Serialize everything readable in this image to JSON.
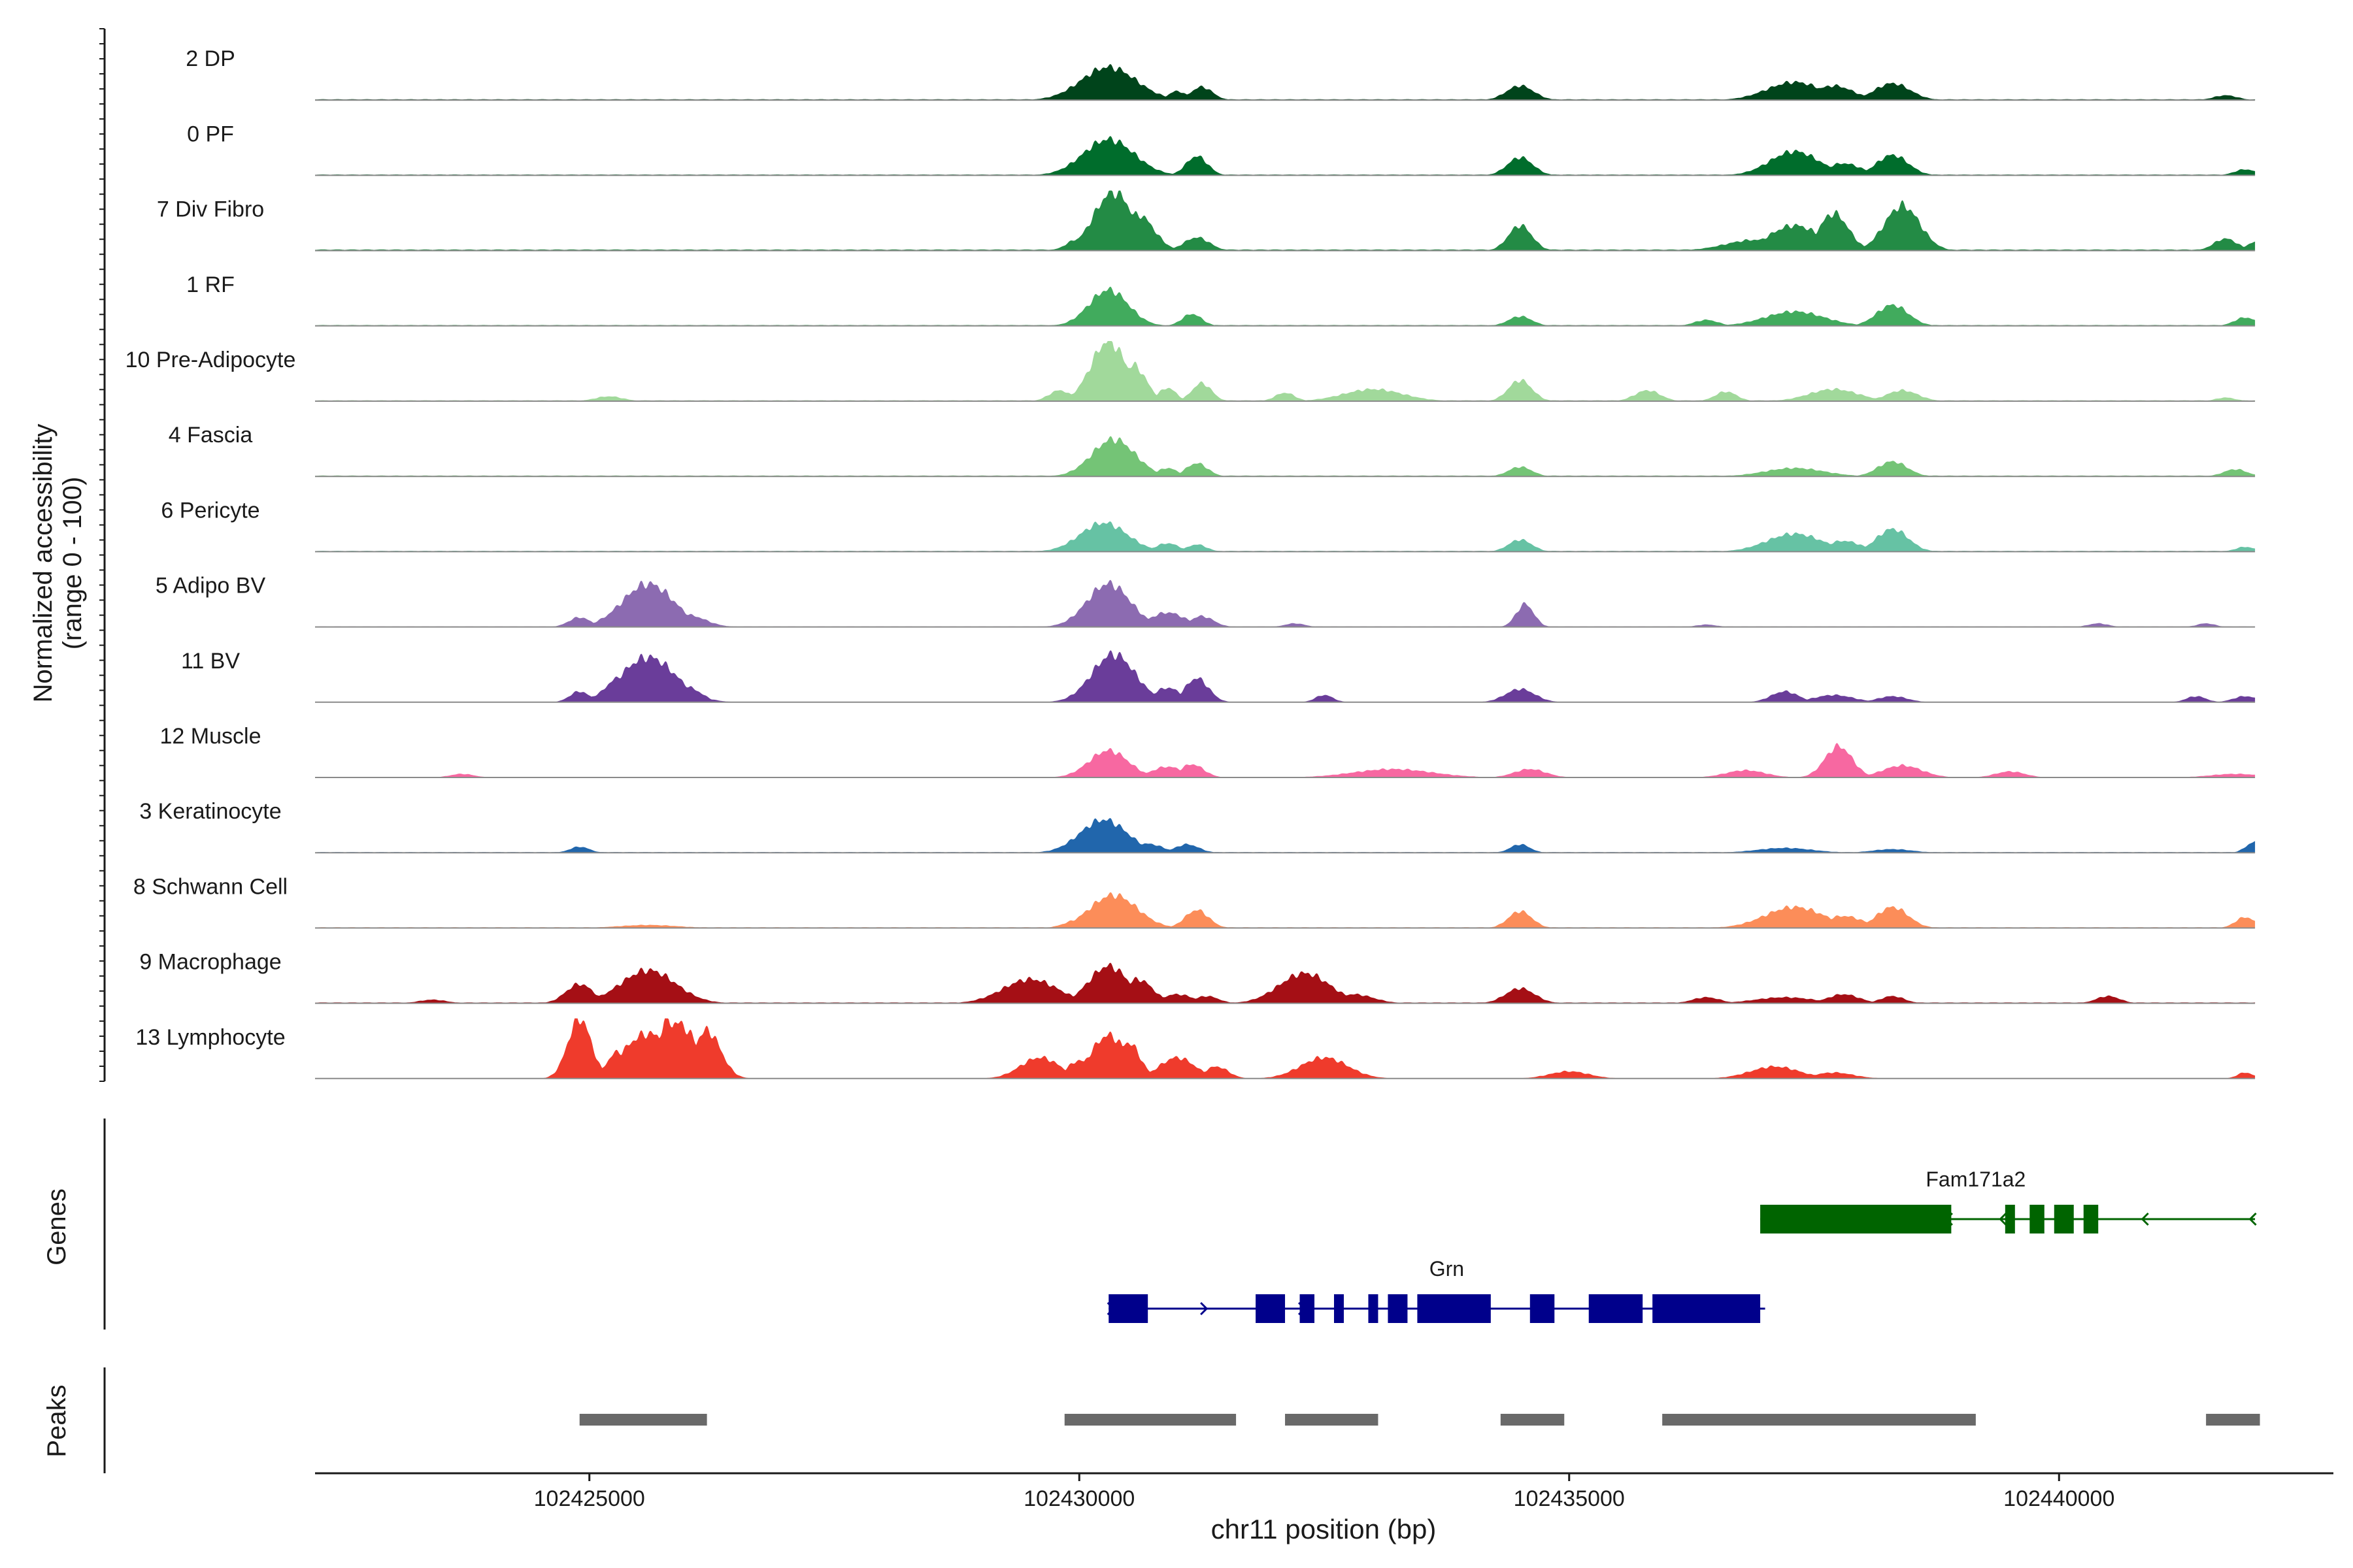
{
  "chart_data": {
    "type": "area",
    "title": "",
    "xlabel": "chr11 position (bp)",
    "ylabel_line1": "Normalized accessibility",
    "ylabel_line2": "(range 0 - 100)",
    "xlim": [
      102422200,
      102442800
    ],
    "ylim": [
      0,
      100
    ],
    "x_ticks": [
      102425000,
      102430000,
      102435000,
      102440000
    ],
    "x_tick_labels": [
      "102425000",
      "102430000",
      "102435000",
      "102440000"
    ],
    "track_range": [
      102422200,
      102442000
    ],
    "panel_labels": {
      "genes": "Genes",
      "peaks": "Peaks"
    },
    "series": [
      {
        "name": "2 DP",
        "color": "#00441b",
        "base": 1.5,
        "peaks": [
          [
            102430300,
            280,
            55
          ],
          [
            102431000,
            90,
            15
          ],
          [
            102431250,
            110,
            22
          ],
          [
            102434500,
            140,
            24
          ],
          [
            102437300,
            280,
            30
          ],
          [
            102437700,
            200,
            24
          ],
          [
            102438300,
            180,
            28
          ],
          [
            102441700,
            120,
            8
          ]
        ]
      },
      {
        "name": "0 PF",
        "color": "#006d2c",
        "base": 1.5,
        "peaks": [
          [
            102430300,
            260,
            60
          ],
          [
            102431200,
            110,
            32
          ],
          [
            102434500,
            130,
            30
          ],
          [
            102437300,
            250,
            40
          ],
          [
            102437800,
            180,
            20
          ],
          [
            102438300,
            160,
            34
          ],
          [
            102441900,
            110,
            10
          ]
        ]
      },
      {
        "name": "7 Div Fibro",
        "color": "#238b45",
        "base": 2,
        "peaks": [
          [
            102430350,
            200,
            98
          ],
          [
            102430600,
            160,
            60
          ],
          [
            102430000,
            120,
            20
          ],
          [
            102431200,
            130,
            22
          ],
          [
            102434500,
            120,
            42
          ],
          [
            102436900,
            300,
            18
          ],
          [
            102437300,
            260,
            42
          ],
          [
            102437700,
            150,
            62
          ],
          [
            102438400,
            180,
            75
          ],
          [
            102441700,
            120,
            20
          ],
          [
            102442000,
            90,
            14
          ]
        ]
      },
      {
        "name": "1 RF",
        "color": "#41ab5d",
        "base": 1.5,
        "peaks": [
          [
            102430300,
            200,
            60
          ],
          [
            102431150,
            100,
            20
          ],
          [
            102434500,
            120,
            16
          ],
          [
            102436400,
            120,
            10
          ],
          [
            102437300,
            300,
            24
          ],
          [
            102438300,
            160,
            35
          ],
          [
            102441900,
            110,
            14
          ]
        ]
      },
      {
        "name": "10 Pre-Adipocyte",
        "color": "#a1d99b",
        "base": 1.5,
        "peaks": [
          [
            102430300,
            180,
            100
          ],
          [
            102430550,
            130,
            60
          ],
          [
            102429800,
            110,
            18
          ],
          [
            102430900,
            90,
            22
          ],
          [
            102431250,
            100,
            30
          ],
          [
            102432100,
            100,
            14
          ],
          [
            102433000,
            300,
            20
          ],
          [
            102434500,
            120,
            35
          ],
          [
            102435800,
            130,
            18
          ],
          [
            102436600,
            110,
            16
          ],
          [
            102437700,
            250,
            20
          ],
          [
            102438400,
            160,
            18
          ],
          [
            102425200,
            140,
            8
          ],
          [
            102441700,
            100,
            6
          ]
        ]
      },
      {
        "name": "4 Fascia",
        "color": "#74c476",
        "base": 1.5,
        "peaks": [
          [
            102430350,
            220,
            62
          ],
          [
            102430900,
            100,
            14
          ],
          [
            102431200,
            110,
            22
          ],
          [
            102434500,
            120,
            16
          ],
          [
            102437300,
            300,
            14
          ],
          [
            102438300,
            150,
            25
          ],
          [
            102441800,
            120,
            12
          ]
        ]
      },
      {
        "name": "6 Pericyte",
        "color": "#66c2a4",
        "base": 1.5,
        "peaks": [
          [
            102430250,
            240,
            48
          ],
          [
            102430900,
            120,
            14
          ],
          [
            102431200,
            100,
            12
          ],
          [
            102434500,
            120,
            20
          ],
          [
            102437300,
            280,
            30
          ],
          [
            102437800,
            180,
            18
          ],
          [
            102438300,
            160,
            38
          ],
          [
            102441900,
            100,
            8
          ]
        ]
      },
      {
        "name": "5 Adipo BV",
        "color": "#8c6bb1",
        "base": 0.8,
        "peaks": [
          [
            102425600,
            260,
            72
          ],
          [
            102426000,
            180,
            20
          ],
          [
            102424900,
            110,
            16
          ],
          [
            102430300,
            220,
            72
          ],
          [
            102430900,
            180,
            24
          ],
          [
            102431250,
            120,
            18
          ],
          [
            102432200,
            100,
            6
          ],
          [
            102434550,
            90,
            38
          ],
          [
            102436400,
            100,
            4
          ],
          [
            102440400,
            100,
            6
          ],
          [
            102441500,
            90,
            6
          ]
        ]
      },
      {
        "name": "11 BV",
        "color": "#6a3d9a",
        "base": 0.8,
        "peaks": [
          [
            102425600,
            280,
            75
          ],
          [
            102425300,
            140,
            40
          ],
          [
            102426000,
            140,
            25
          ],
          [
            102424900,
            100,
            18
          ],
          [
            102430350,
            220,
            80
          ],
          [
            102430900,
            140,
            24
          ],
          [
            102431200,
            120,
            40
          ],
          [
            102432500,
            90,
            12
          ],
          [
            102434500,
            150,
            22
          ],
          [
            102437200,
            140,
            18
          ],
          [
            102437700,
            200,
            12
          ],
          [
            102438300,
            150,
            10
          ],
          [
            102441400,
            100,
            10
          ],
          [
            102441900,
            120,
            10
          ]
        ]
      },
      {
        "name": "12 Muscle",
        "color": "#f768a1",
        "base": 0.8,
        "peaks": [
          [
            102430300,
            200,
            45
          ],
          [
            102430900,
            160,
            18
          ],
          [
            102431150,
            120,
            22
          ],
          [
            102433200,
            400,
            14
          ],
          [
            102434600,
            160,
            14
          ],
          [
            102436800,
            200,
            12
          ],
          [
            102437750,
            140,
            52
          ],
          [
            102438400,
            200,
            20
          ],
          [
            102439500,
            150,
            10
          ],
          [
            102423700,
            120,
            6
          ],
          [
            102441800,
            250,
            6
          ]
        ]
      },
      {
        "name": "3 Keratinocyte",
        "color": "#2166ac",
        "base": 1.2,
        "peaks": [
          [
            102430250,
            240,
            55
          ],
          [
            102430700,
            150,
            15
          ],
          [
            102431100,
            120,
            14
          ],
          [
            102434500,
            100,
            14
          ],
          [
            102437200,
            280,
            8
          ],
          [
            102438300,
            200,
            6
          ],
          [
            102424900,
            100,
            10
          ],
          [
            102442000,
            90,
            18
          ]
        ]
      },
      {
        "name": "8 Schwann Cell",
        "color": "#fc8d59",
        "base": 1.2,
        "peaks": [
          [
            102430350,
            240,
            55
          ],
          [
            102430000,
            140,
            14
          ],
          [
            102431200,
            120,
            30
          ],
          [
            102434500,
            120,
            28
          ],
          [
            102437300,
            300,
            35
          ],
          [
            102437800,
            200,
            20
          ],
          [
            102438300,
            160,
            35
          ],
          [
            102441900,
            100,
            18
          ],
          [
            102425600,
            300,
            5
          ]
        ]
      },
      {
        "name": "9 Macrophage",
        "color": "#a50f15",
        "base": 1.5,
        "peaks": [
          [
            102425600,
            280,
            55
          ],
          [
            102424900,
            140,
            32
          ],
          [
            102426000,
            120,
            15
          ],
          [
            102429500,
            280,
            40
          ],
          [
            102430300,
            200,
            62
          ],
          [
            102430600,
            150,
            40
          ],
          [
            102431000,
            160,
            15
          ],
          [
            102431300,
            120,
            12
          ],
          [
            102432300,
            260,
            50
          ],
          [
            102432800,
            200,
            15
          ],
          [
            102434500,
            150,
            25
          ],
          [
            102436400,
            140,
            10
          ],
          [
            102437200,
            300,
            10
          ],
          [
            102437800,
            160,
            15
          ],
          [
            102438300,
            120,
            12
          ],
          [
            102440500,
            120,
            12
          ],
          [
            102423400,
            140,
            6
          ]
        ]
      },
      {
        "name": "13 Lymphocyte",
        "color": "#ef3b2c",
        "base": 0,
        "peaks": [
          [
            102424900,
            120,
            100
          ],
          [
            102425600,
            260,
            75
          ],
          [
            102425900,
            200,
            92
          ],
          [
            102425300,
            120,
            45
          ],
          [
            102425800,
            100,
            100
          ],
          [
            102426200,
            140,
            80
          ],
          [
            102429600,
            200,
            35
          ],
          [
            102430300,
            180,
            72
          ],
          [
            102430000,
            120,
            30
          ],
          [
            102430500,
            120,
            60
          ],
          [
            102431000,
            180,
            35
          ],
          [
            102431400,
            120,
            20
          ],
          [
            102432500,
            240,
            35
          ],
          [
            102435000,
            200,
            12
          ],
          [
            102437100,
            250,
            20
          ],
          [
            102437700,
            200,
            10
          ],
          [
            102441900,
            80,
            10
          ]
        ]
      }
    ],
    "genes": [
      {
        "name": "Grn",
        "strand": "+",
        "color": "#00008b",
        "start": 102430300,
        "end": 102437000,
        "exons": [
          [
            102430300,
            102430700
          ],
          [
            102431800,
            102432100
          ],
          [
            102432250,
            102432400
          ],
          [
            102432600,
            102432700
          ],
          [
            102432950,
            102433050
          ],
          [
            102433150,
            102433350
          ],
          [
            102433450,
            102434200
          ],
          [
            102434600,
            102434850
          ],
          [
            102435200,
            102435750
          ],
          [
            102435850,
            102436950
          ]
        ]
      },
      {
        "name": "Fam171a2",
        "strand": "-",
        "color": "#006400",
        "start": 102436950,
        "end": 102442000,
        "exons": [
          [
            102436950,
            102438900
          ],
          [
            102439450,
            102439550
          ],
          [
            102439700,
            102439850
          ],
          [
            102439950,
            102440150
          ],
          [
            102440250,
            102440400
          ]
        ]
      }
    ],
    "peaks": [
      [
        102424900,
        102426200
      ],
      [
        102429850,
        102431600
      ],
      [
        102432100,
        102433050
      ],
      [
        102434300,
        102434950
      ],
      [
        102435950,
        102439150
      ],
      [
        102441500,
        102442050
      ]
    ]
  }
}
